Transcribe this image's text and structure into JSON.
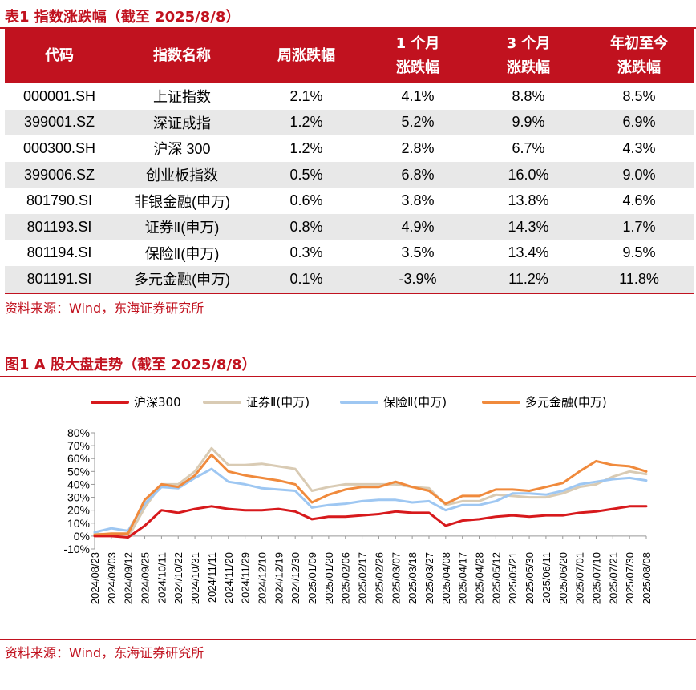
{
  "table1": {
    "title": "表1  指数涨跌幅（截至 2025/8/8）",
    "headers": [
      "代码",
      "指数名称",
      "周涨跌幅",
      "1 个月\n涨跌幅",
      "3 个月\n涨跌幅",
      "年初至今\n涨跌幅"
    ],
    "rows": [
      [
        "000001.SH",
        "上证指数",
        "2.1%",
        "4.1%",
        "8.8%",
        "8.5%"
      ],
      [
        "399001.SZ",
        "深证成指",
        "1.2%",
        "5.2%",
        "9.9%",
        "6.9%"
      ],
      [
        "000300.SH",
        "沪深 300",
        "1.2%",
        "2.8%",
        "6.7%",
        "4.3%"
      ],
      [
        "399006.SZ",
        "创业板指数",
        "0.5%",
        "6.8%",
        "16.0%",
        "9.0%"
      ],
      [
        "801790.SI",
        "非银金融(申万)",
        "0.6%",
        "3.8%",
        "13.8%",
        "4.6%"
      ],
      [
        "801193.SI",
        "证券Ⅱ(申万)",
        "0.8%",
        "4.9%",
        "14.3%",
        "1.7%"
      ],
      [
        "801194.SI",
        "保险Ⅱ(申万)",
        "0.3%",
        "3.5%",
        "13.4%",
        "9.5%"
      ],
      [
        "801191.SI",
        "多元金融(申万)",
        "0.1%",
        "-3.9%",
        "11.2%",
        "11.8%"
      ]
    ],
    "source": "资料来源：Wind，东海证券研究所"
  },
  "figure1": {
    "title": "图1  A 股大盘走势（截至 2025/8/8）",
    "source": "资料来源：Wind，东海证券研究所"
  },
  "colors": {
    "accent": "#c1121f",
    "row_alt": "#e8e8e8"
  },
  "chart_data": {
    "type": "line",
    "ylim": [
      -10,
      80
    ],
    "yticks": [
      "-10%",
      "0%",
      "10%",
      "20%",
      "30%",
      "40%",
      "50%",
      "60%",
      "70%",
      "80%"
    ],
    "legend_position": "top",
    "x": [
      "2024/08/23",
      "2024/09/03",
      "2024/09/12",
      "2024/09/25",
      "2024/10/11",
      "2024/10/22",
      "2024/10/31",
      "2024/11/11",
      "2024/11/20",
      "2024/11/29",
      "2024/12/10",
      "2024/12/19",
      "2024/12/30",
      "2025/01/09",
      "2025/01/20",
      "2025/02/06",
      "2025/02/17",
      "2025/02/26",
      "2025/03/07",
      "2025/03/18",
      "2025/03/27",
      "2025/04/08",
      "2025/04/17",
      "2025/04/28",
      "2025/05/12",
      "2025/05/21",
      "2025/05/30",
      "2025/06/11",
      "2025/06/20",
      "2025/07/01",
      "2025/07/10",
      "2025/07/21",
      "2025/07/30",
      "2025/08/08"
    ],
    "series": [
      {
        "name": "沪深300",
        "color": "#d7191c",
        "values": [
          0,
          0,
          -1,
          8,
          20,
          18,
          21,
          23,
          21,
          20,
          20,
          21,
          19,
          13,
          15,
          15,
          16,
          17,
          19,
          18,
          18,
          8,
          12,
          13,
          15,
          16,
          15,
          16,
          16,
          18,
          19,
          21,
          23,
          23
        ]
      },
      {
        "name": "证券Ⅱ(申万)",
        "color": "#d9cbb4",
        "values": [
          2,
          1,
          -1,
          22,
          40,
          40,
          50,
          68,
          55,
          55,
          56,
          54,
          52,
          35,
          38,
          40,
          40,
          40,
          40,
          38,
          37,
          24,
          27,
          27,
          32,
          31,
          30,
          30,
          33,
          38,
          40,
          46,
          50,
          48
        ]
      },
      {
        "name": "保险Ⅱ(申万)",
        "color": "#9ec7f2",
        "values": [
          3,
          6,
          4,
          25,
          38,
          37,
          45,
          52,
          42,
          40,
          37,
          36,
          35,
          22,
          24,
          25,
          27,
          28,
          28,
          26,
          27,
          20,
          24,
          24,
          27,
          33,
          33,
          32,
          35,
          40,
          42,
          44,
          45,
          43
        ]
      },
      {
        "name": "多元金融(申万)",
        "color": "#f08a3c",
        "values": [
          1,
          2,
          2,
          28,
          40,
          38,
          47,
          63,
          50,
          47,
          45,
          43,
          40,
          26,
          32,
          36,
          38,
          38,
          42,
          38,
          35,
          25,
          31,
          31,
          36,
          36,
          35,
          38,
          41,
          50,
          58,
          55,
          54,
          50
        ]
      }
    ]
  }
}
